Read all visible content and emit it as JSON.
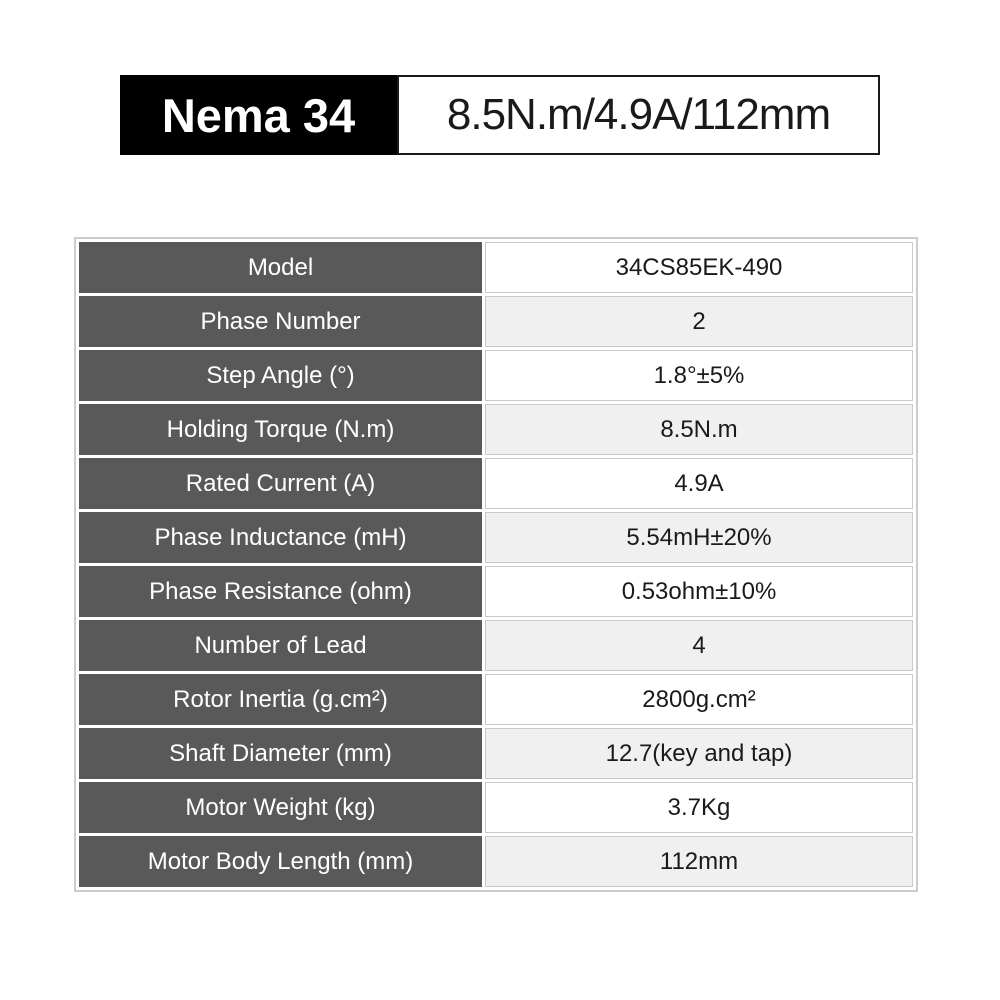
{
  "header": {
    "series": "Nema 34",
    "summary": "8.5N.m/4.9A/112mm"
  },
  "table": {
    "rows": [
      {
        "label": "Model",
        "value": "34CS85EK-490"
      },
      {
        "label": "Phase Number",
        "value": "2"
      },
      {
        "label": "Step Angle (°)",
        "value": "1.8°±5%"
      },
      {
        "label": "Holding Torque (N.m)",
        "value": "8.5N.m"
      },
      {
        "label": "Rated Current (A)",
        "value": "4.9A"
      },
      {
        "label": "Phase Inductance (mH)",
        "value": "5.54mH±20%"
      },
      {
        "label": "Phase Resistance (ohm)",
        "value": "0.53ohm±10%"
      },
      {
        "label": "Number of Lead",
        "value": "4"
      },
      {
        "label": "Rotor Inertia (g.cm²)",
        "value": "2800g.cm²"
      },
      {
        "label": "Shaft Diameter (mm)",
        "value": "12.7(key and tap)"
      },
      {
        "label": "Motor Weight (kg)",
        "value": "3.7Kg"
      },
      {
        "label": "Motor Body Length (mm)",
        "value": "112mm"
      }
    ]
  },
  "colors": {
    "badge_bg": "#000000",
    "badge_text": "#ffffff",
    "label_bg": "#595959",
    "label_text": "#ffffff",
    "value_text": "#1a1a1a",
    "row_bg": "#ffffff",
    "row_alt_bg": "#f0f0f0",
    "grid_border": "#c9c9c9",
    "outer_border": "#cccccc",
    "summary_border": "#1a1a1a"
  }
}
